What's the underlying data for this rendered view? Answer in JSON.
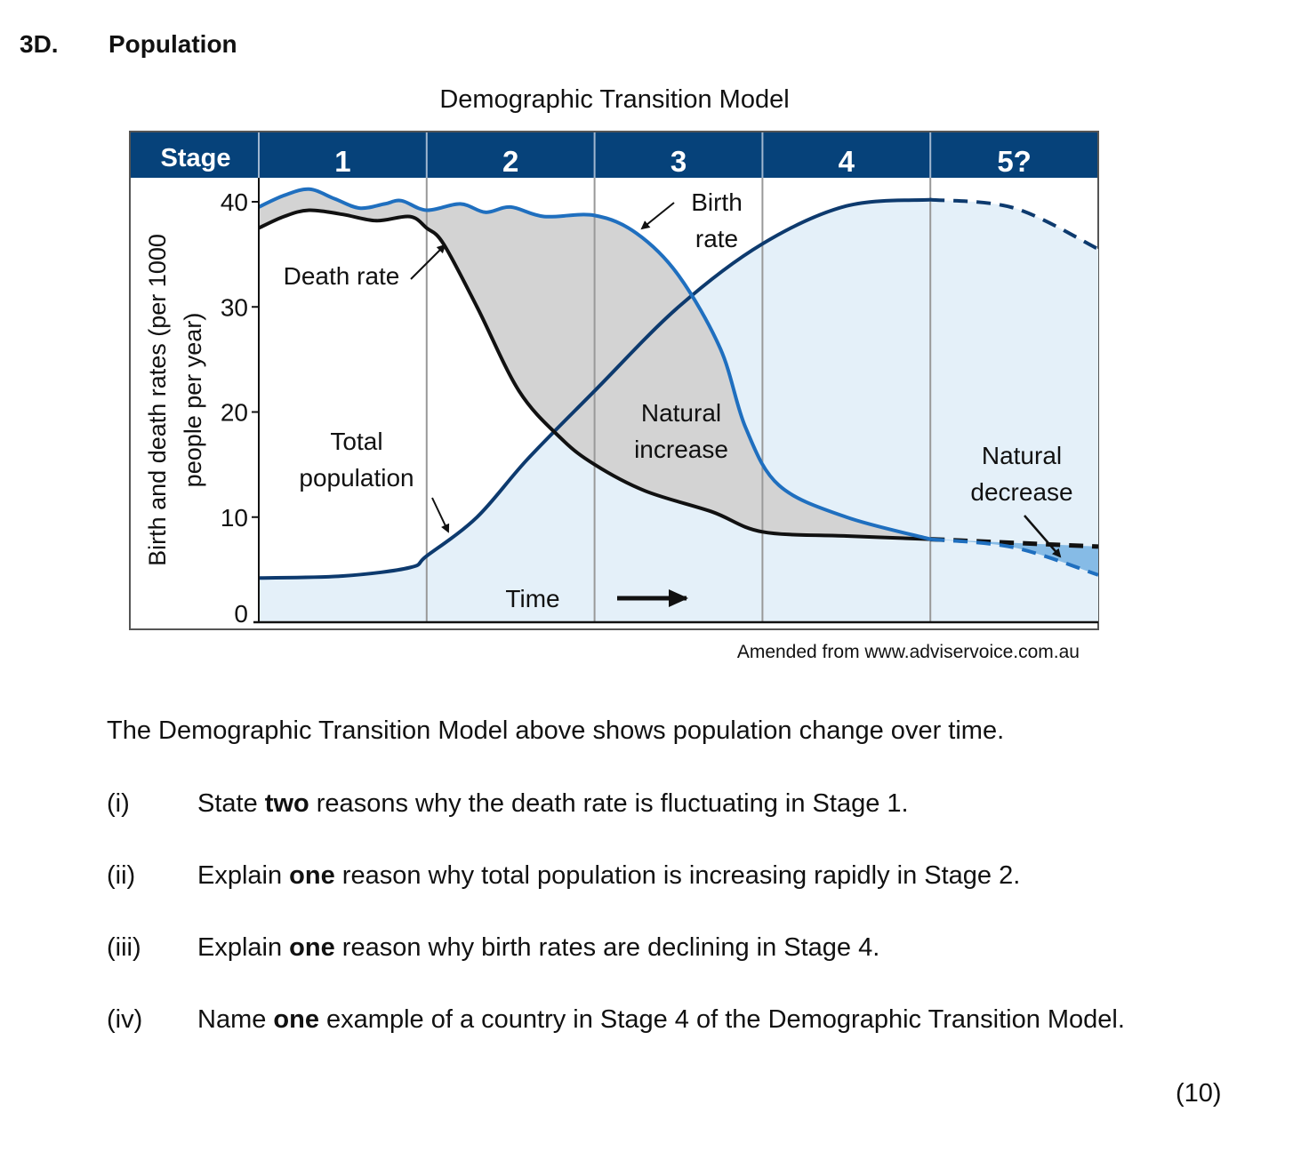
{
  "question": {
    "number": "3D.",
    "title": "Population"
  },
  "chart_data": {
    "type": "line",
    "title": "Demographic Transition Model",
    "ylabel": "Birth and death rates (per 1000 people per year)",
    "ylabel_lines": [
      "Birth and death rates (per 1000",
      "people per year)"
    ],
    "xlabel": "Time",
    "ylim": [
      0,
      40
    ],
    "yticks": [
      0,
      10,
      20,
      30,
      40
    ],
    "stage_header": "Stage",
    "stages": [
      "1",
      "2",
      "3",
      "4",
      "5?"
    ],
    "stage_bounds": [
      0,
      1,
      2,
      3,
      4,
      5
    ],
    "series": [
      {
        "name": "Birth rate",
        "color": "#1f6fbf",
        "points": [
          [
            0,
            39.5
          ],
          [
            0.15,
            40.6
          ],
          [
            0.3,
            41.2
          ],
          [
            0.45,
            40.3
          ],
          [
            0.6,
            39.4
          ],
          [
            0.75,
            39.8
          ],
          [
            0.85,
            40.1
          ],
          [
            1.0,
            39.2
          ],
          [
            1.2,
            39.8
          ],
          [
            1.35,
            39.0
          ],
          [
            1.5,
            39.5
          ],
          [
            1.7,
            38.6
          ],
          [
            2.0,
            38.7
          ],
          [
            2.25,
            37.0
          ],
          [
            2.5,
            33.0
          ],
          [
            2.75,
            26.0
          ],
          [
            2.9,
            18.5
          ],
          [
            3.1,
            13.0
          ],
          [
            3.5,
            10.0
          ],
          [
            4.0,
            7.9
          ]
        ]
      },
      {
        "name": "Death rate",
        "color": "#111111",
        "points": [
          [
            0,
            37.5
          ],
          [
            0.15,
            38.6
          ],
          [
            0.3,
            39.2
          ],
          [
            0.5,
            38.8
          ],
          [
            0.7,
            38.2
          ],
          [
            0.9,
            38.6
          ],
          [
            1.0,
            37.5
          ],
          [
            1.1,
            36.0
          ],
          [
            1.3,
            30.0
          ],
          [
            1.55,
            22.0
          ],
          [
            1.8,
            17.5
          ],
          [
            2.0,
            15.0
          ],
          [
            2.3,
            12.5
          ],
          [
            2.7,
            10.5
          ],
          [
            3.0,
            8.6
          ],
          [
            3.5,
            8.2
          ],
          [
            4.0,
            7.9
          ]
        ]
      },
      {
        "name": "Total population",
        "color": "#0d3a6e",
        "points": [
          [
            0,
            4.2
          ],
          [
            0.5,
            4.4
          ],
          [
            0.9,
            5.2
          ],
          [
            1.0,
            6.3
          ],
          [
            1.3,
            10.0
          ],
          [
            1.6,
            15.5
          ],
          [
            2.0,
            22.0
          ],
          [
            2.5,
            30.0
          ],
          [
            3.0,
            36.0
          ],
          [
            3.5,
            39.6
          ],
          [
            4.0,
            40.2
          ]
        ]
      },
      {
        "name": "Birth rate (stage 5, projected)",
        "color": "#1f6fbf",
        "dashed": true,
        "points": [
          [
            4.0,
            7.9
          ],
          [
            4.5,
            7.1
          ],
          [
            5.0,
            4.5
          ]
        ]
      },
      {
        "name": "Death rate (stage 5, projected)",
        "color": "#111111",
        "dashed": true,
        "points": [
          [
            4.0,
            7.9
          ],
          [
            5.0,
            7.2
          ]
        ]
      },
      {
        "name": "Total population (stage 5, projected)",
        "color": "#0d3a6e",
        "dashed": true,
        "points": [
          [
            4.0,
            40.2
          ],
          [
            4.5,
            39.4
          ],
          [
            5.0,
            35.5
          ]
        ]
      }
    ],
    "annotations": {
      "birth_rate": [
        "Birth",
        "rate"
      ],
      "death_rate": "Death rate",
      "total_population": [
        "Total",
        "population"
      ],
      "natural_increase": [
        "Natural",
        "increase"
      ],
      "natural_decrease": [
        "Natural",
        "decrease"
      ],
      "time": "Time"
    },
    "colors": {
      "header_bg": "#06427a",
      "header_text": "#ffffff",
      "population_fill": "#e4f0f9",
      "natural_increase_fill": "#d3d3d3",
      "natural_decrease_fill": "#86bbe6",
      "stage_divider": "#999999"
    }
  },
  "source": "Amended from www.adviservoice.com.au",
  "intro": "The Demographic Transition Model above shows population change over time.",
  "questions": [
    {
      "num": "(i)",
      "pre": "State ",
      "bold": "two",
      "post": " reasons why the death rate is fluctuating in Stage 1."
    },
    {
      "num": "(ii)",
      "pre": "Explain ",
      "bold": "one",
      "post": " reason why total population is increasing rapidly in Stage 2."
    },
    {
      "num": "(iii)",
      "pre": "Explain ",
      "bold": "one",
      "post": " reason why birth rates are declining in Stage 4."
    },
    {
      "num": "(iv)",
      "pre": "Name ",
      "bold": "one",
      "post": " example of a country in Stage 4 of the Demographic Transition Model."
    }
  ],
  "marks": "(10)"
}
